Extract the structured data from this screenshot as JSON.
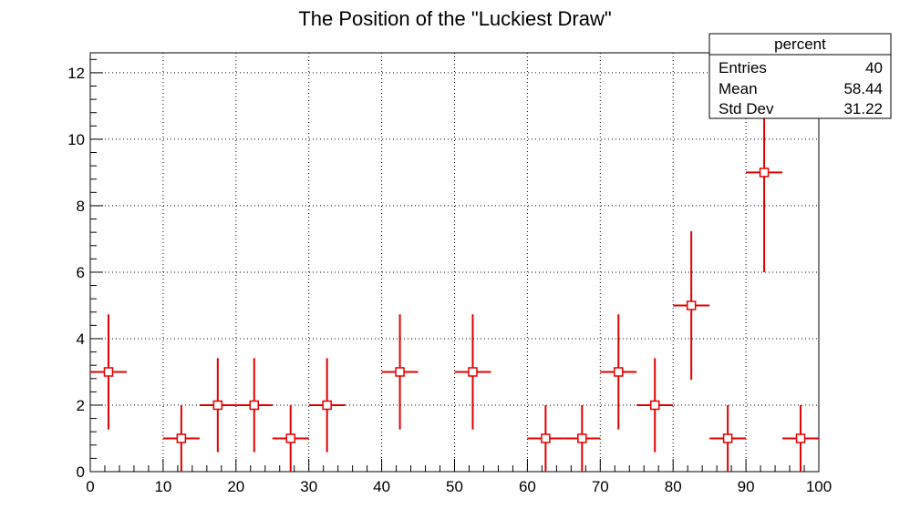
{
  "chart_data": {
    "type": "scatter",
    "title": "The Position of the \"Luckiest Draw\"",
    "xlabel": "",
    "ylabel": "",
    "xlim": [
      0,
      100
    ],
    "ylim": [
      0,
      12.6
    ],
    "xticks": [
      0,
      10,
      20,
      30,
      40,
      50,
      60,
      70,
      80,
      90,
      100
    ],
    "yticks": [
      0,
      2,
      4,
      6,
      8,
      10,
      12
    ],
    "grid": true,
    "bin_width": 5,
    "series": [
      {
        "color": "#e00000",
        "marker": "open-square",
        "points": [
          {
            "x": 2.5,
            "y": 3
          },
          {
            "x": 12.5,
            "y": 1
          },
          {
            "x": 17.5,
            "y": 2
          },
          {
            "x": 22.5,
            "y": 2
          },
          {
            "x": 27.5,
            "y": 1
          },
          {
            "x": 32.5,
            "y": 2
          },
          {
            "x": 42.5,
            "y": 3
          },
          {
            "x": 52.5,
            "y": 3
          },
          {
            "x": 62.5,
            "y": 1
          },
          {
            "x": 67.5,
            "y": 1
          },
          {
            "x": 72.5,
            "y": 3
          },
          {
            "x": 77.5,
            "y": 2
          },
          {
            "x": 82.5,
            "y": 5
          },
          {
            "x": 87.5,
            "y": 1
          },
          {
            "x": 92.5,
            "y": 9
          },
          {
            "x": 97.5,
            "y": 1
          }
        ]
      }
    ],
    "stats_box": {
      "title": "percent",
      "rows": [
        {
          "label": "Entries",
          "value": "40"
        },
        {
          "label": "Mean",
          "value": "58.44"
        },
        {
          "label": "Std Dev",
          "value": "31.22"
        }
      ]
    }
  }
}
